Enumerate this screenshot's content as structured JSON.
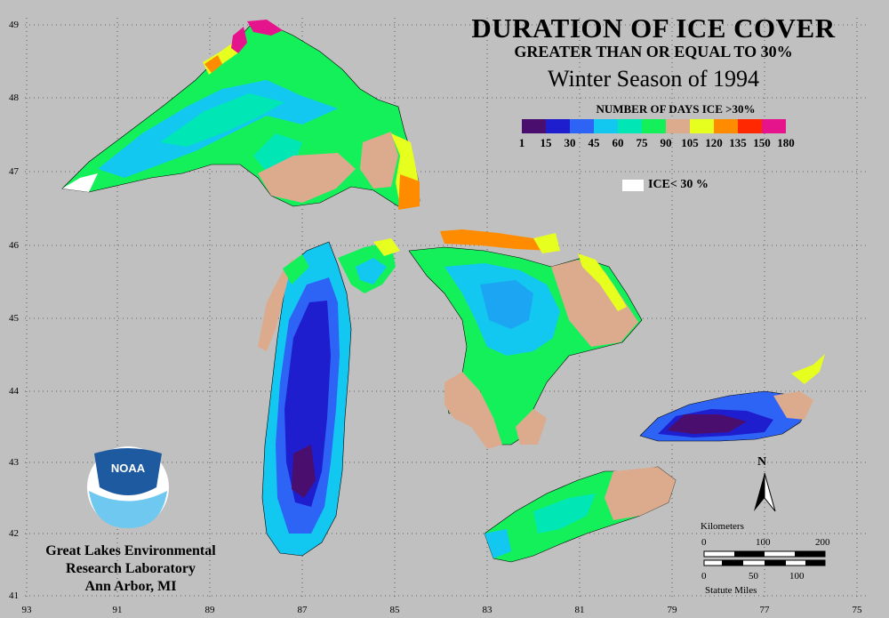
{
  "title": {
    "line1": "DURATION OF ICE COVER",
    "line2": "GREATER THAN OR EQUAL TO 30%",
    "line3": "Winter Season of 1994"
  },
  "legend": {
    "title": "NUMBER OF DAYS ICE >30%",
    "colors": [
      "#4a0e6e",
      "#1e1ecf",
      "#2e64f5",
      "#12c8f0",
      "#00e6b4",
      "#14f05a",
      "#dcaa8c",
      "#e6ff1e",
      "#ff8c00",
      "#ff2800",
      "#e6148c"
    ],
    "ticks": [
      "1",
      "15",
      "30",
      "45",
      "60",
      "75",
      "90",
      "105",
      "120",
      "135",
      "150",
      "180"
    ],
    "ice_below_label": "ICE< 30 %"
  },
  "lat_labels": [
    "49",
    "48",
    "47",
    "46",
    "45",
    "44",
    "43",
    "42",
    "41"
  ],
  "lon_labels": [
    "93",
    "91",
    "89",
    "87",
    "85",
    "83",
    "81",
    "79",
    "77",
    "75"
  ],
  "agency": {
    "logo_text": "NOAA",
    "line1": "Great Lakes Environmental",
    "line2": "Research Laboratory",
    "line3": "Ann Arbor, MI"
  },
  "north_label": "N",
  "scale": {
    "km_title": "Kilometers",
    "km_ticks": [
      "0",
      "100",
      "200"
    ],
    "mi_ticks": [
      "0",
      "50",
      "100"
    ],
    "mi_title": "Statute Miles"
  }
}
